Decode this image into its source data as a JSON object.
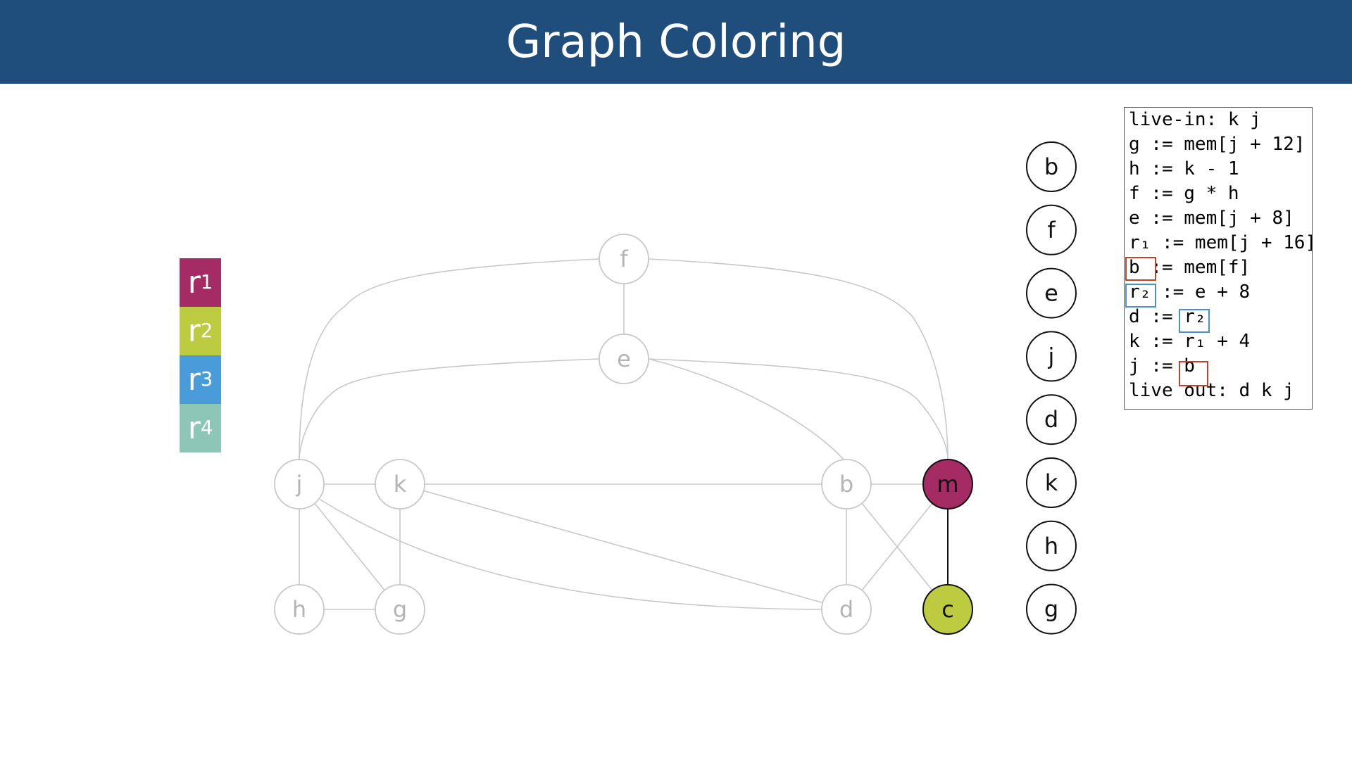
{
  "title": "Graph Coloring",
  "registers": [
    {
      "name": "r",
      "sub": "1",
      "color": "#a42b64"
    },
    {
      "name": "r",
      "sub": "2",
      "color": "#bccb3f"
    },
    {
      "name": "r",
      "sub": "3",
      "color": "#4a9bda"
    },
    {
      "name": "r",
      "sub": "4",
      "color": "#8dc6b7"
    }
  ],
  "graph": {
    "nodes": [
      {
        "id": "f",
        "label": "f",
        "state": "inactive"
      },
      {
        "id": "e",
        "label": "e",
        "state": "inactive"
      },
      {
        "id": "j",
        "label": "j",
        "state": "inactive"
      },
      {
        "id": "k",
        "label": "k",
        "state": "inactive"
      },
      {
        "id": "b",
        "label": "b",
        "state": "inactive"
      },
      {
        "id": "m",
        "label": "m",
        "state": "colored",
        "color": "#a42b64"
      },
      {
        "id": "h",
        "label": "h",
        "state": "inactive"
      },
      {
        "id": "g",
        "label": "g",
        "state": "inactive"
      },
      {
        "id": "d",
        "label": "d",
        "state": "inactive"
      },
      {
        "id": "c",
        "label": "c",
        "state": "colored",
        "color": "#bccb3f"
      }
    ],
    "edges": [
      [
        "f",
        "e"
      ],
      [
        "f",
        "j"
      ],
      [
        "f",
        "m"
      ],
      [
        "e",
        "j"
      ],
      [
        "e",
        "m"
      ],
      [
        "e",
        "b"
      ],
      [
        "j",
        "k"
      ],
      [
        "j",
        "h"
      ],
      [
        "j",
        "g"
      ],
      [
        "j",
        "d"
      ],
      [
        "k",
        "b"
      ],
      [
        "k",
        "g"
      ],
      [
        "k",
        "d"
      ],
      [
        "h",
        "g"
      ],
      [
        "b",
        "m"
      ],
      [
        "b",
        "d"
      ],
      [
        "b",
        "c"
      ],
      [
        "m",
        "d"
      ],
      [
        "m",
        "c"
      ]
    ],
    "active_edges": [
      [
        "m",
        "c"
      ]
    ]
  },
  "stack": [
    "b",
    "f",
    "e",
    "j",
    "d",
    "k",
    "h",
    "g"
  ],
  "code": {
    "lines": [
      "live-in: k j",
      "g := mem[j + 12]",
      "h := k - 1",
      "f := g * h",
      "e := mem[j + 8]",
      "r₁ := mem[j + 16]",
      "b := mem[f]",
      "r₂ := e + 8",
      "d := r₂",
      "k := r₁ + 4",
      "j := b",
      "live out: d k j"
    ]
  },
  "colors": {
    "header": "#1f4e7d",
    "inactive_stroke": "#c8c8c8",
    "inactive_text": "#b4b4b4",
    "highlight_red": "#c0432e",
    "highlight_blue": "#4a90d0"
  }
}
